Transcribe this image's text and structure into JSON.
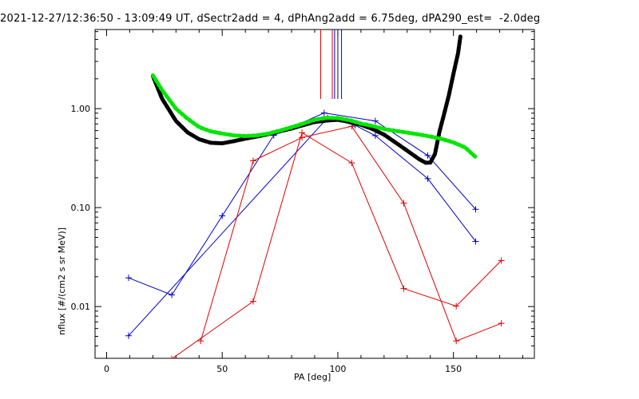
{
  "chart_data": {
    "type": "line",
    "title": "2021-12-27/12:36:50 - 13:09:49 UT, dSectr2add = 4, dPhAng2add = 6.75deg, dPA290_est=  -2.0deg",
    "xlabel": "PA [deg]",
    "ylabel": "nflux [#/(cm2 s sr MeV)]",
    "xlim": [
      -5,
      185
    ],
    "ylim": [
      0.003,
      6.3
    ],
    "yscale": "log",
    "grid": false,
    "x_ticks": [
      0,
      50,
      100,
      150
    ],
    "x_tick_labels": [
      "0",
      "50",
      "100",
      "150"
    ],
    "y_ticks": [
      0.01,
      0.1,
      1.0
    ],
    "y_tick_labels": [
      "0.01",
      "0.10",
      "1.00"
    ],
    "vertical_markers": [
      {
        "x": 92.6,
        "color": "#e00000"
      },
      {
        "x": 97.6,
        "color": "#e00000"
      },
      {
        "x": 98.6,
        "color": "#0000c8"
      },
      {
        "x": 100.0,
        "color": "#0000c8"
      },
      {
        "x": 101.6,
        "color": "#0000c8"
      }
    ],
    "series": [
      {
        "color": "#0000c8",
        "style": "line+plus",
        "x": [
          9.5,
          28.2,
          50.0,
          72.3,
          94.1,
          116.2,
          138.9,
          159.6
        ],
        "y": [
          0.0195,
          0.0131,
          0.0825,
          0.538,
          0.905,
          0.751,
          0.336,
          0.0961
        ]
      },
      {
        "color": "#0000c8",
        "style": "line+plus",
        "x": [
          9.5,
          95.6,
          107.5,
          116.2,
          138.9,
          159.6
        ],
        "y": [
          0.00507,
          0.806,
          0.679,
          0.534,
          0.196,
          0.0455
        ]
      },
      {
        "color": "#e00000",
        "style": "line+plus",
        "x": [
          28.2,
          63.4,
          84.5,
          106.0,
          128.5,
          151.2,
          170.7
        ],
        "y": [
          0.00296,
          0.0113,
          0.571,
          0.283,
          0.0152,
          0.0101,
          0.0292
        ]
      },
      {
        "color": "#e00000",
        "style": "line+plus",
        "x": [
          40.7,
          63.4,
          84.5,
          106.0,
          128.5,
          151.2,
          170.7
        ],
        "y": [
          0.0045,
          0.297,
          0.511,
          0.662,
          0.111,
          0.00449,
          0.00677
        ]
      },
      {
        "color": "#000000",
        "style": "thick-dashed",
        "x": [
          20.0,
          24.0,
          30.0,
          35.0,
          40.0,
          45.0,
          50.0,
          55.0,
          60.0,
          65.0,
          70.0,
          75.0,
          80.0,
          85.0,
          90.0,
          95.0,
          100.0,
          105.0,
          110.0,
          115.0,
          120.0,
          125.0,
          130.0,
          135.0,
          138.0,
          140.0,
          142.0,
          144.0,
          146.0,
          148.0,
          150.0,
          152.0,
          153.0
        ],
        "y": [
          2.14,
          1.26,
          0.751,
          0.575,
          0.49,
          0.452,
          0.446,
          0.469,
          0.498,
          0.522,
          0.553,
          0.59,
          0.63,
          0.681,
          0.732,
          0.758,
          0.772,
          0.736,
          0.687,
          0.623,
          0.546,
          0.454,
          0.376,
          0.31,
          0.284,
          0.284,
          0.347,
          0.589,
          0.889,
          1.36,
          2.25,
          3.64,
          5.35
        ]
      },
      {
        "color": "#00e600",
        "style": "thick-dotted",
        "x": [
          20.0,
          24.0,
          30.0,
          35.0,
          40.0,
          45.0,
          50.0,
          55.0,
          60.0,
          65.0,
          70.0,
          75.0,
          80.0,
          85.0,
          90.0,
          95.0,
          100.0,
          105.0,
          110.0,
          115.0,
          120.0,
          125.0,
          130.0,
          135.0,
          140.0,
          145.0,
          150.0,
          155.0,
          160.0
        ],
        "y": [
          2.17,
          1.54,
          0.998,
          0.79,
          0.651,
          0.589,
          0.56,
          0.536,
          0.528,
          0.536,
          0.56,
          0.6,
          0.649,
          0.706,
          0.771,
          0.806,
          0.803,
          0.764,
          0.706,
          0.668,
          0.623,
          0.595,
          0.573,
          0.548,
          0.523,
          0.493,
          0.455,
          0.406,
          0.318
        ]
      }
    ]
  }
}
